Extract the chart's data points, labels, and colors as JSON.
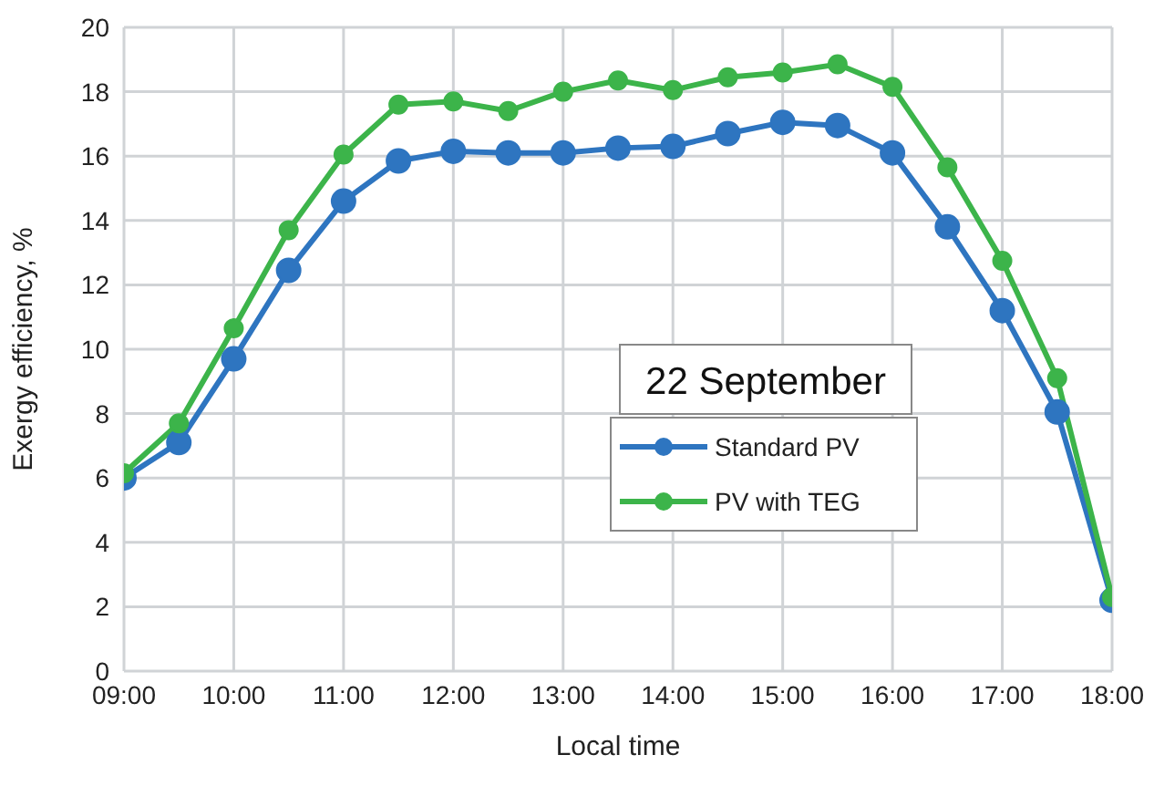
{
  "chart_data": {
    "type": "line",
    "title": "22 September",
    "xlabel": "Local time",
    "ylabel": "Exergy efficiency, %",
    "x": [
      9,
      9.5,
      10,
      10.5,
      11,
      11.5,
      12,
      12.5,
      13,
      13.5,
      14,
      14.5,
      15,
      15.5,
      16,
      16.5,
      17,
      17.5,
      18
    ],
    "series": [
      {
        "name": "Standard PV",
        "color": "#2e75c0",
        "values": [
          6.0,
          7.1,
          9.7,
          12.45,
          14.6,
          15.85,
          16.15,
          16.1,
          16.1,
          16.25,
          16.3,
          16.7,
          17.05,
          16.95,
          16.1,
          13.8,
          11.2,
          8.05,
          2.2
        ]
      },
      {
        "name": "PV with TEG",
        "color": "#3cb44a",
        "values": [
          6.15,
          7.7,
          10.65,
          13.7,
          16.05,
          17.6,
          17.7,
          17.4,
          18.0,
          18.35,
          18.05,
          18.45,
          18.6,
          18.85,
          18.15,
          15.65,
          12.75,
          9.1,
          2.3
        ]
      }
    ],
    "xlim": [
      9,
      18
    ],
    "xticks": [
      {
        "value": 9,
        "label": "09:00"
      },
      {
        "value": 10,
        "label": "10:00"
      },
      {
        "value": 11,
        "label": "11:00"
      },
      {
        "value": 12,
        "label": "12:00"
      },
      {
        "value": 13,
        "label": "13:00"
      },
      {
        "value": 14,
        "label": "14:00"
      },
      {
        "value": 15,
        "label": "15:00"
      },
      {
        "value": 16,
        "label": "16:00"
      },
      {
        "value": 17,
        "label": "17:00"
      },
      {
        "value": 18,
        "label": "18:00"
      }
    ],
    "ylim": [
      0,
      20
    ],
    "yticks": [
      0,
      2,
      4,
      6,
      8,
      10,
      12,
      14,
      16,
      18,
      20
    ],
    "grid": true,
    "legend": "center",
    "marker": "circle",
    "line_style": "solid"
  }
}
